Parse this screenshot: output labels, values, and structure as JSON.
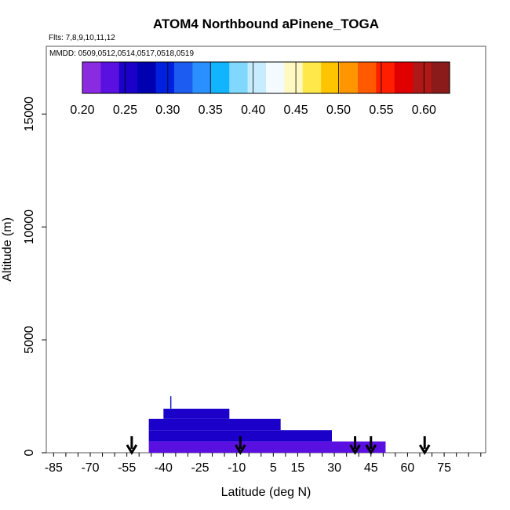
{
  "chart_data": {
    "type": "heatmap",
    "title": "ATOM4 Northbound aPinene_TOGA",
    "flights_label": "Flts: 7,8,9,10,11,12",
    "dates_label": "MMDD: 0509,0512,0514,0517,0518,0519",
    "xlabel": "Latitude (deg N)",
    "ylabel": "Altitude (m)",
    "xlim": [
      -88,
      92
    ],
    "ylim": [
      0,
      18000
    ],
    "x_ticks": [
      -85,
      -70,
      -55,
      -40,
      -25,
      -10,
      5,
      15,
      30,
      45,
      60,
      75
    ],
    "y_ticks": [
      0,
      5000,
      10000,
      15000
    ],
    "colorbar": {
      "ticks": [
        "0.20",
        "0.25",
        "0.30",
        "0.35",
        "0.40",
        "0.45",
        "0.50",
        "0.55",
        "0.60"
      ],
      "min": 0.2,
      "max": 0.63,
      "colors": [
        "#8a2be2",
        "#5a10e0",
        "#1a00c8",
        "#0000b0",
        "#0020e0",
        "#1c5cf0",
        "#2a90ff",
        "#10b4ff",
        "#80d8ff",
        "#c8ecff",
        "#f4fbff",
        "#fff8c0",
        "#ffe84a",
        "#ffc400",
        "#ff9600",
        "#ff5a00",
        "#ff1e00",
        "#e00000",
        "#b01818",
        "#8b1a1a"
      ]
    },
    "cells": [
      {
        "lat0": -40,
        "lat1": -13,
        "alt0": 1500,
        "alt1": 1950,
        "value": 0.25
      },
      {
        "lat0": -46,
        "lat1": 8,
        "alt0": 1000,
        "alt1": 1500,
        "value": 0.25
      },
      {
        "lat0": -46,
        "lat1": 29,
        "alt0": 500,
        "alt1": 1000,
        "value": 0.245
      },
      {
        "lat0": -46,
        "lat1": 51,
        "alt0": 0,
        "alt1": 500,
        "value": 0.235
      }
    ],
    "vertical_marker": {
      "lat": -37,
      "alt0": 1950,
      "alt1": 2500
    },
    "arrows_lat": [
      -53,
      -8.5,
      38.5,
      45,
      67
    ]
  }
}
